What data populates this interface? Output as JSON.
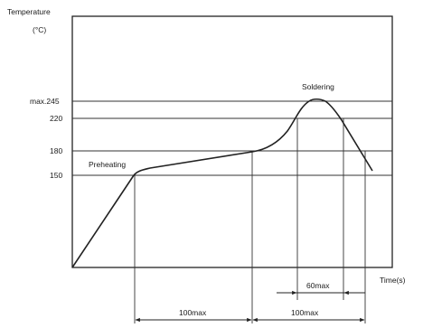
{
  "axes": {
    "y_title": "Temperature",
    "y_unit": "(°C)",
    "x_title": "Time(s)"
  },
  "temperature_levels": [
    {
      "label": "max.245"
    },
    {
      "label": "220"
    },
    {
      "label": "180"
    },
    {
      "label": "150"
    }
  ],
  "phases": {
    "preheating": "Preheating",
    "soldering": "Soldering"
  },
  "durations": {
    "above_220": "60max",
    "preheat_150_to_180": "100max",
    "above_180": "100max"
  },
  "colors": {
    "line": "#222222",
    "background": "#ffffff"
  }
}
